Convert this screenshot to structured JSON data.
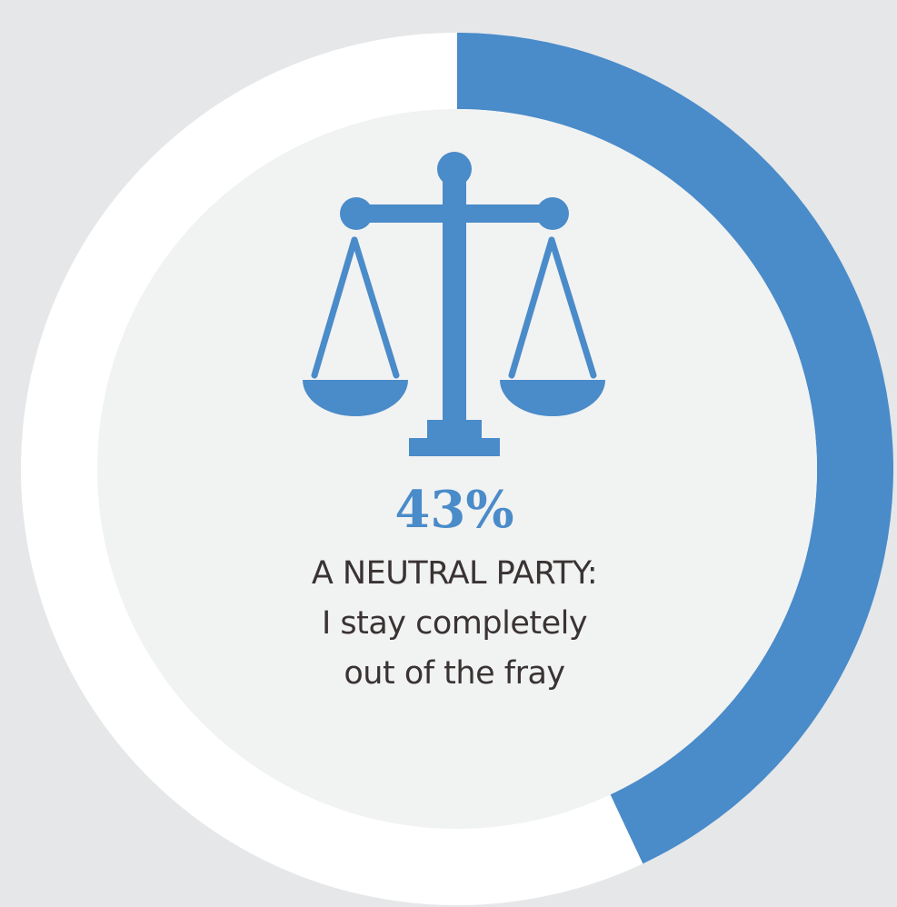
{
  "colors": {
    "background": "#e6e7e8",
    "ring_track": "#ffffff",
    "ring_fill": "#4a8bc9",
    "inner_circle": "#f1f2f2",
    "icon": "#4a8bc9",
    "text": "#3a3333"
  },
  "icon": "balance-scale-icon",
  "chart_data": {
    "type": "pie",
    "categories": [
      "A NEUTRAL PARTY"
    ],
    "values": [
      43
    ],
    "total": 100,
    "value_label": "43%",
    "description_lines": [
      "A NEUTRAL PARTY:",
      "I stay completely",
      "out of the fray"
    ]
  }
}
